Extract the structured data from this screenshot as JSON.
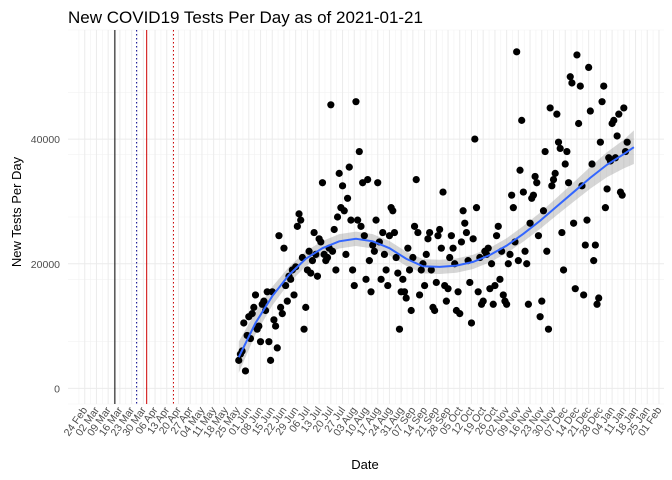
{
  "chart_data": {
    "type": "scatter",
    "title": "New COVID19 Tests Per Day as of 2021-01-21",
    "xlabel": "Date",
    "ylabel": "New Tests Per Day",
    "ylim": [
      -2500,
      57500
    ],
    "yticks": [
      0,
      20000,
      40000
    ],
    "ytick_labels": [
      "0",
      "20000",
      "40000"
    ],
    "xlim_dates": [
      "2020-02-14",
      "2021-02-04"
    ],
    "xtick_dates": [
      "2020-02-24",
      "2020-03-02",
      "2020-03-09",
      "2020-03-16",
      "2020-03-23",
      "2020-03-30",
      "2020-04-06",
      "2020-04-13",
      "2020-04-20",
      "2020-04-27",
      "2020-05-04",
      "2020-05-11",
      "2020-05-18",
      "2020-05-25",
      "2020-06-01",
      "2020-06-08",
      "2020-06-15",
      "2020-06-22",
      "2020-06-29",
      "2020-07-06",
      "2020-07-13",
      "2020-07-20",
      "2020-07-27",
      "2020-08-03",
      "2020-08-10",
      "2020-08-17",
      "2020-08-24",
      "2020-08-31",
      "2020-09-07",
      "2020-09-14",
      "2020-09-21",
      "2020-09-28",
      "2020-10-05",
      "2020-10-12",
      "2020-10-19",
      "2020-10-26",
      "2020-11-02",
      "2020-11-09",
      "2020-11-16",
      "2020-11-23",
      "2020-11-30",
      "2020-12-07",
      "2020-12-14",
      "2020-12-21",
      "2020-12-28",
      "2021-01-04",
      "2021-01-11",
      "2021-01-18",
      "2021-01-25",
      "2021-02-01"
    ],
    "xtick_labels": [
      "24 Feb",
      "02 Mar",
      "09 Mar",
      "16 Mar",
      "23 Mar",
      "30 Mar",
      "06 Apr",
      "13 Apr",
      "20 Apr",
      "27 Apr",
      "04 May",
      "11 May",
      "18 May",
      "25 May",
      "01 Jun",
      "08 Jun",
      "15 Jun",
      "22 Jun",
      "29 Jun",
      "06 Jul",
      "13 Jul",
      "20 Jul",
      "27 Jul",
      "03 Aug",
      "10 Aug",
      "17 Aug",
      "24 Aug",
      "31 Aug",
      "07 Sep",
      "14 Sep",
      "21 Sep",
      "28 Sep",
      "05 Oct",
      "12 Oct",
      "19 Oct",
      "26 Oct",
      "02 Nov",
      "09 Nov",
      "16 Nov",
      "23 Nov",
      "30 Nov",
      "07 Dec",
      "14 Dec",
      "21 Dec",
      "28 Dec",
      "04 Jan",
      "11 Jan",
      "18 Jan",
      "25 Jan",
      "01 Feb"
    ],
    "grid": true,
    "vlines": [
      {
        "date": "2020-03-13",
        "color": "#000000",
        "style": "solid"
      },
      {
        "date": "2020-03-26",
        "color": "#00008b",
        "style": "dotted"
      },
      {
        "date": "2020-04-01",
        "color": "#cc0000",
        "style": "solid"
      },
      {
        "date": "2020-04-17",
        "color": "#cc0000",
        "style": "dotted"
      }
    ],
    "points": [
      [
        "2020-05-26",
        4500
      ],
      [
        "2020-05-27",
        5500
      ],
      [
        "2020-05-28",
        6000
      ],
      [
        "2020-05-29",
        10500
      ],
      [
        "2020-05-30",
        2800
      ],
      [
        "2020-05-31",
        8500
      ],
      [
        "2020-06-01",
        11500
      ],
      [
        "2020-06-02",
        8000
      ],
      [
        "2020-06-03",
        12000
      ],
      [
        "2020-06-04",
        13000
      ],
      [
        "2020-06-05",
        15000
      ],
      [
        "2020-06-06",
        9500
      ],
      [
        "2020-06-07",
        10000
      ],
      [
        "2020-06-08",
        7500
      ],
      [
        "2020-06-09",
        13500
      ],
      [
        "2020-06-10",
        14000
      ],
      [
        "2020-06-11",
        12500
      ],
      [
        "2020-06-12",
        15500
      ],
      [
        "2020-06-13",
        7500
      ],
      [
        "2020-06-14",
        4500
      ],
      [
        "2020-06-15",
        15500
      ],
      [
        "2020-06-16",
        11000
      ],
      [
        "2020-06-17",
        10000
      ],
      [
        "2020-06-18",
        6500
      ],
      [
        "2020-06-19",
        24500
      ],
      [
        "2020-06-20",
        13000
      ],
      [
        "2020-06-21",
        12000
      ],
      [
        "2020-06-22",
        22500
      ],
      [
        "2020-06-23",
        16500
      ],
      [
        "2020-06-24",
        14000
      ],
      [
        "2020-06-25",
        18000
      ],
      [
        "2020-06-26",
        17500
      ],
      [
        "2020-06-27",
        19000
      ],
      [
        "2020-06-28",
        15000
      ],
      [
        "2020-06-29",
        19500
      ],
      [
        "2020-06-30",
        26000
      ],
      [
        "2020-07-01",
        28000
      ],
      [
        "2020-07-02",
        27000
      ],
      [
        "2020-07-03",
        21000
      ],
      [
        "2020-07-04",
        9500
      ],
      [
        "2020-07-05",
        13000
      ],
      [
        "2020-07-06",
        19000
      ],
      [
        "2020-07-07",
        22000
      ],
      [
        "2020-07-08",
        18500
      ],
      [
        "2020-07-09",
        20500
      ],
      [
        "2020-07-10",
        25000
      ],
      [
        "2020-07-11",
        21500
      ],
      [
        "2020-07-12",
        18000
      ],
      [
        "2020-07-13",
        24000
      ],
      [
        "2020-07-14",
        23500
      ],
      [
        "2020-07-15",
        33000
      ],
      [
        "2020-07-16",
        21500
      ],
      [
        "2020-07-17",
        20500
      ],
      [
        "2020-07-18",
        21000
      ],
      [
        "2020-07-19",
        22500
      ],
      [
        "2020-07-20",
        45500
      ],
      [
        "2020-07-21",
        22000
      ],
      [
        "2020-07-22",
        25500
      ],
      [
        "2020-07-23",
        19000
      ],
      [
        "2020-07-24",
        27500
      ],
      [
        "2020-07-25",
        34500
      ],
      [
        "2020-07-26",
        29000
      ],
      [
        "2020-07-27",
        32500
      ],
      [
        "2020-07-28",
        28500
      ],
      [
        "2020-07-29",
        21500
      ],
      [
        "2020-07-30",
        30500
      ],
      [
        "2020-07-31",
        35500
      ],
      [
        "2020-08-01",
        27000
      ],
      [
        "2020-08-02",
        19000
      ],
      [
        "2020-08-03",
        16500
      ],
      [
        "2020-08-04",
        46000
      ],
      [
        "2020-08-05",
        27000
      ],
      [
        "2020-08-06",
        38000
      ],
      [
        "2020-08-07",
        26000
      ],
      [
        "2020-08-08",
        33000
      ],
      [
        "2020-08-09",
        24500
      ],
      [
        "2020-08-10",
        17500
      ],
      [
        "2020-08-11",
        33500
      ],
      [
        "2020-08-12",
        20500
      ],
      [
        "2020-08-13",
        15500
      ],
      [
        "2020-08-14",
        23000
      ],
      [
        "2020-08-15",
        22000
      ],
      [
        "2020-08-16",
        27000
      ],
      [
        "2020-08-17",
        33000
      ],
      [
        "2020-08-18",
        23500
      ],
      [
        "2020-08-19",
        17500
      ],
      [
        "2020-08-20",
        25000
      ],
      [
        "2020-08-21",
        21500
      ],
      [
        "2020-08-22",
        19000
      ],
      [
        "2020-08-23",
        16500
      ],
      [
        "2020-08-24",
        24500
      ],
      [
        "2020-08-25",
        29000
      ],
      [
        "2020-08-26",
        28500
      ],
      [
        "2020-08-27",
        25000
      ],
      [
        "2020-08-28",
        21000
      ],
      [
        "2020-08-29",
        18500
      ],
      [
        "2020-08-30",
        9500
      ],
      [
        "2020-08-31",
        15500
      ],
      [
        "2020-09-01",
        17500
      ],
      [
        "2020-09-02",
        15500
      ],
      [
        "2020-09-03",
        14500
      ],
      [
        "2020-09-04",
        22500
      ],
      [
        "2020-09-05",
        19000
      ],
      [
        "2020-09-06",
        12500
      ],
      [
        "2020-09-07",
        21000
      ],
      [
        "2020-09-08",
        26000
      ],
      [
        "2020-09-09",
        33500
      ],
      [
        "2020-09-10",
        25000
      ],
      [
        "2020-09-11",
        15000
      ],
      [
        "2020-09-12",
        19000
      ],
      [
        "2020-09-13",
        20000
      ],
      [
        "2020-09-14",
        16500
      ],
      [
        "2020-09-15",
        21500
      ],
      [
        "2020-09-16",
        24000
      ],
      [
        "2020-09-17",
        25000
      ],
      [
        "2020-09-18",
        19000
      ],
      [
        "2020-09-19",
        13000
      ],
      [
        "2020-09-20",
        12500
      ],
      [
        "2020-09-21",
        17000
      ],
      [
        "2020-09-22",
        24500
      ],
      [
        "2020-09-23",
        25500
      ],
      [
        "2020-09-24",
        22500
      ],
      [
        "2020-09-25",
        31500
      ],
      [
        "2020-09-26",
        16500
      ],
      [
        "2020-09-27",
        14000
      ],
      [
        "2020-09-28",
        16000
      ],
      [
        "2020-09-29",
        21000
      ],
      [
        "2020-09-30",
        24500
      ],
      [
        "2020-10-01",
        22500
      ],
      [
        "2020-10-02",
        20000
      ],
      [
        "2020-10-03",
        12500
      ],
      [
        "2020-10-04",
        15500
      ],
      [
        "2020-10-05",
        12000
      ],
      [
        "2020-10-06",
        23500
      ],
      [
        "2020-10-07",
        28500
      ],
      [
        "2020-10-08",
        26500
      ],
      [
        "2020-10-09",
        25000
      ],
      [
        "2020-10-10",
        20500
      ],
      [
        "2020-10-11",
        17000
      ],
      [
        "2020-10-12",
        10500
      ],
      [
        "2020-10-13",
        24000
      ],
      [
        "2020-10-14",
        40000
      ],
      [
        "2020-10-15",
        29000
      ],
      [
        "2020-10-16",
        15500
      ],
      [
        "2020-10-17",
        21000
      ],
      [
        "2020-10-18",
        13500
      ],
      [
        "2020-10-19",
        14000
      ],
      [
        "2020-10-20",
        22000
      ],
      [
        "2020-10-21",
        21500
      ],
      [
        "2020-10-22",
        22500
      ],
      [
        "2020-10-23",
        16000
      ],
      [
        "2020-10-24",
        20000
      ],
      [
        "2020-10-25",
        13500
      ],
      [
        "2020-10-26",
        16500
      ],
      [
        "2020-10-27",
        24500
      ],
      [
        "2020-10-28",
        26000
      ],
      [
        "2020-10-29",
        17500
      ],
      [
        "2020-10-30",
        22000
      ],
      [
        "2020-10-31",
        15000
      ],
      [
        "2020-11-01",
        14000
      ],
      [
        "2020-11-02",
        13500
      ],
      [
        "2020-11-03",
        20000
      ],
      [
        "2020-11-04",
        21500
      ],
      [
        "2020-11-05",
        31000
      ],
      [
        "2020-11-06",
        29000
      ],
      [
        "2020-11-07",
        23500
      ],
      [
        "2020-11-08",
        54000
      ],
      [
        "2020-11-09",
        20500
      ],
      [
        "2020-11-10",
        35000
      ],
      [
        "2020-11-11",
        43000
      ],
      [
        "2020-11-12",
        31500
      ],
      [
        "2020-11-13",
        22000
      ],
      [
        "2020-11-14",
        20000
      ],
      [
        "2020-11-15",
        13500
      ],
      [
        "2020-11-16",
        26500
      ],
      [
        "2020-11-17",
        30500
      ],
      [
        "2020-11-18",
        31000
      ],
      [
        "2020-11-19",
        34000
      ],
      [
        "2020-11-20",
        33000
      ],
      [
        "2020-11-21",
        24500
      ],
      [
        "2020-11-22",
        11500
      ],
      [
        "2020-11-23",
        14000
      ],
      [
        "2020-11-24",
        28500
      ],
      [
        "2020-11-25",
        38000
      ],
      [
        "2020-11-26",
        22000
      ],
      [
        "2020-11-27",
        9500
      ],
      [
        "2020-11-28",
        45000
      ],
      [
        "2020-11-29",
        32500
      ],
      [
        "2020-11-30",
        33500
      ],
      [
        "2020-12-01",
        34500
      ],
      [
        "2020-12-02",
        44000
      ],
      [
        "2020-12-03",
        39500
      ],
      [
        "2020-12-04",
        38500
      ],
      [
        "2020-12-05",
        25000
      ],
      [
        "2020-12-06",
        19000
      ],
      [
        "2020-12-07",
        36000
      ],
      [
        "2020-12-08",
        38000
      ],
      [
        "2020-12-09",
        33000
      ],
      [
        "2020-12-10",
        50000
      ],
      [
        "2020-12-11",
        49000
      ],
      [
        "2020-12-12",
        26500
      ],
      [
        "2020-12-13",
        16000
      ],
      [
        "2020-12-14",
        53500
      ],
      [
        "2020-12-15",
        42500
      ],
      [
        "2020-12-16",
        48500
      ],
      [
        "2020-12-17",
        32500
      ],
      [
        "2020-12-18",
        15000
      ],
      [
        "2020-12-19",
        23000
      ],
      [
        "2020-12-20",
        27000
      ],
      [
        "2020-12-21",
        51500
      ],
      [
        "2020-12-22",
        44500
      ],
      [
        "2020-12-23",
        36000
      ],
      [
        "2020-12-24",
        20500
      ],
      [
        "2020-12-25",
        23000
      ],
      [
        "2020-12-26",
        13500
      ],
      [
        "2020-12-27",
        14500
      ],
      [
        "2020-12-28",
        39500
      ],
      [
        "2020-12-29",
        46000
      ],
      [
        "2020-12-30",
        48500
      ],
      [
        "2020-12-31",
        29000
      ],
      [
        "2021-01-01",
        32000
      ],
      [
        "2021-01-02",
        37000
      ],
      [
        "2021-01-03",
        36500
      ],
      [
        "2021-01-04",
        42500
      ],
      [
        "2021-01-05",
        43000
      ],
      [
        "2021-01-06",
        37000
      ],
      [
        "2021-01-07",
        40500
      ],
      [
        "2021-01-08",
        44000
      ],
      [
        "2021-01-09",
        31500
      ],
      [
        "2021-01-10",
        31000
      ],
      [
        "2021-01-11",
        45000
      ],
      [
        "2021-01-12",
        38000
      ],
      [
        "2021-01-13",
        39500
      ]
    ],
    "smooth": {
      "color": "#3366ff",
      "band_color": "#999999",
      "fit": [
        [
          "2020-05-26",
          5000
        ],
        [
          "2020-06-05",
          10500
        ],
        [
          "2020-06-15",
          14800
        ],
        [
          "2020-06-25",
          18200
        ],
        [
          "2020-07-05",
          20800
        ],
        [
          "2020-07-15",
          22500
        ],
        [
          "2020-07-25",
          23600
        ],
        [
          "2020-08-04",
          24000
        ],
        [
          "2020-08-14",
          23600
        ],
        [
          "2020-08-24",
          22500
        ],
        [
          "2020-09-03",
          20800
        ],
        [
          "2020-09-13",
          19600
        ],
        [
          "2020-09-23",
          19500
        ],
        [
          "2020-10-03",
          19700
        ],
        [
          "2020-10-13",
          20300
        ],
        [
          "2020-10-23",
          21400
        ],
        [
          "2020-11-02",
          22900
        ],
        [
          "2020-11-12",
          24800
        ],
        [
          "2020-11-22",
          26900
        ],
        [
          "2020-12-02",
          29200
        ],
        [
          "2020-12-12",
          31500
        ],
        [
          "2020-12-22",
          33800
        ],
        [
          "2021-01-01",
          35900
        ],
        [
          "2021-01-11",
          37600
        ],
        [
          "2021-01-17",
          38700
        ]
      ],
      "band_halfwidth": [
        2500,
        1800,
        1500,
        1300,
        1200,
        1150,
        1150,
        1150,
        1150,
        1150,
        1150,
        1150,
        1150,
        1150,
        1150,
        1150,
        1200,
        1250,
        1300,
        1400,
        1550,
        1750,
        2000,
        2300,
        2700
      ]
    }
  }
}
